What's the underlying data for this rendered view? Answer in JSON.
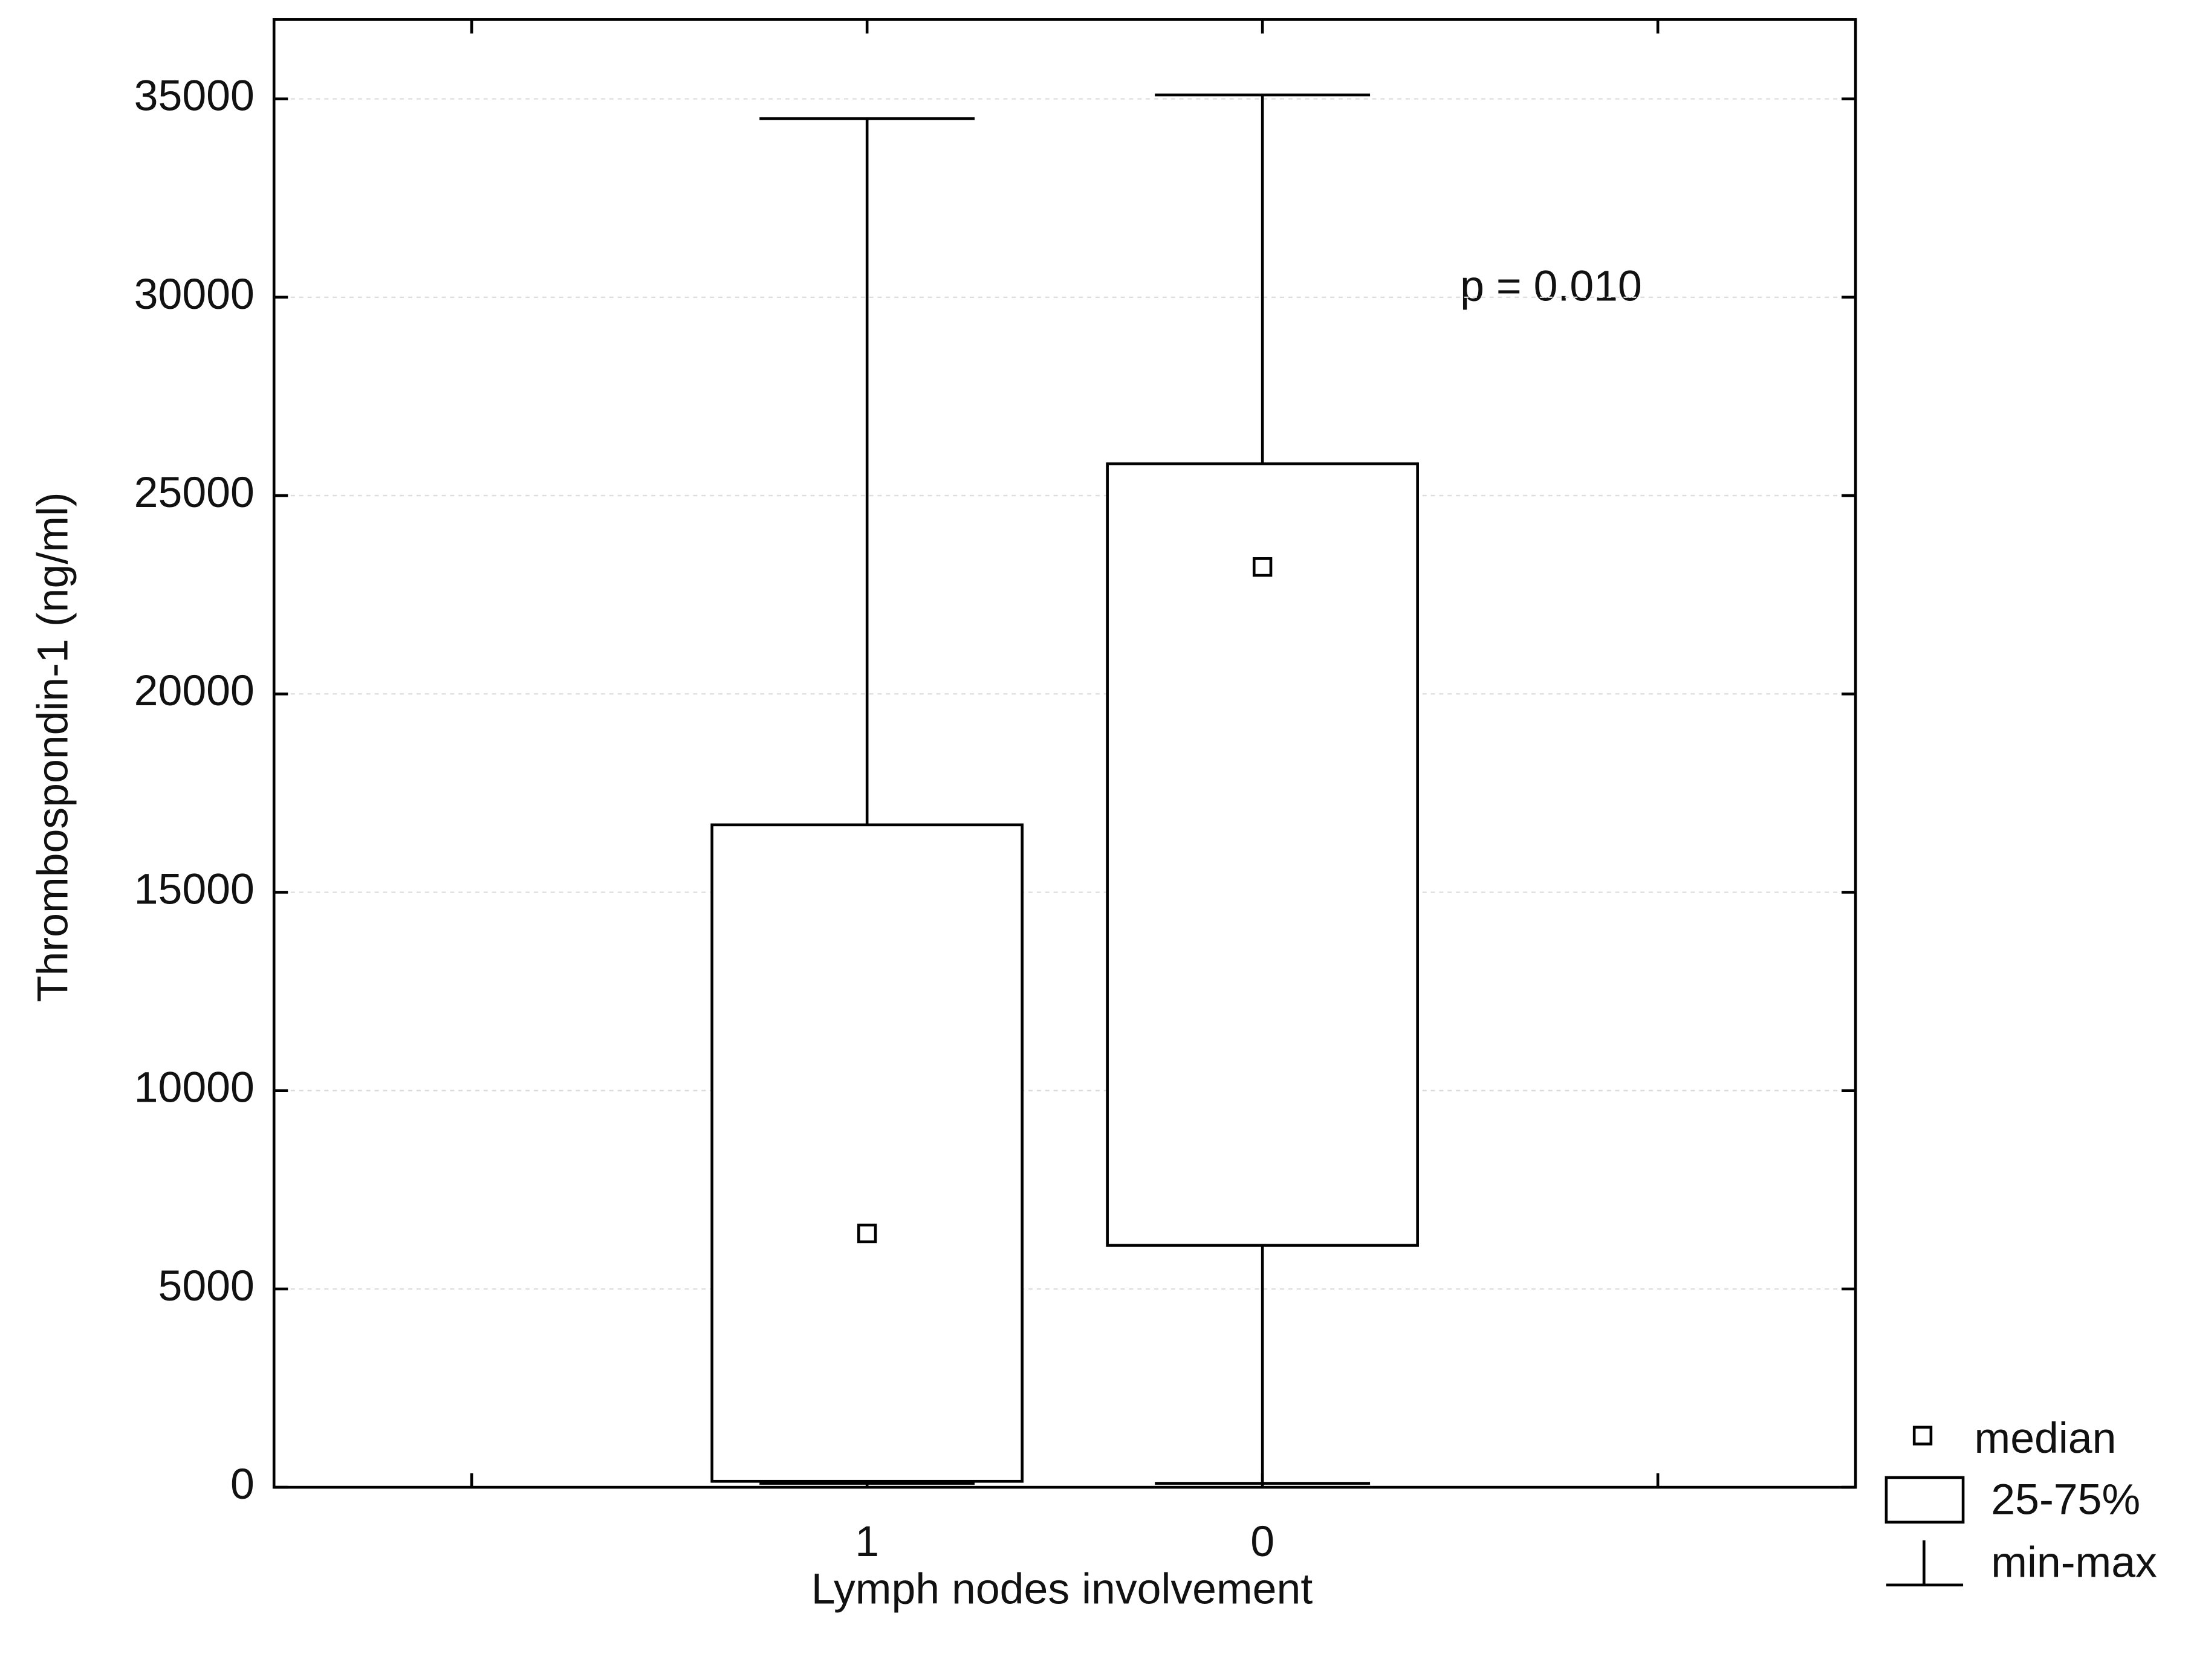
{
  "chart_data": {
    "type": "box",
    "x_label": "Lymph nodes involvement",
    "y_label": "Thrombospondin-1 (ng/ml)",
    "annotation": "p = 0.010",
    "categories": [
      null,
      "1",
      "0",
      null
    ],
    "min": [
      null,
      100,
      100,
      null
    ],
    "q1": [
      null,
      150,
      6100,
      null
    ],
    "median": [
      null,
      6400,
      23200,
      null
    ],
    "q3": [
      null,
      16700,
      25800,
      null
    ],
    "max": [
      null,
      34500,
      35100,
      null
    ],
    "color": "#ffffff",
    "ylim": [
      0,
      37000
    ],
    "yticks": [
      0,
      5000,
      10000,
      15000,
      20000,
      25000,
      30000,
      35000
    ],
    "grid": true,
    "legend_labels": {
      "median": "median",
      "box": "25-75%",
      "range": "min-max"
    }
  }
}
